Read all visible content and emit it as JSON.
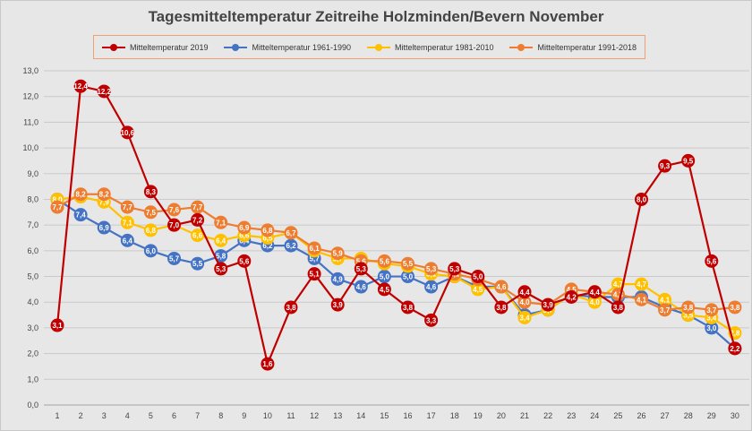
{
  "chart_data": {
    "type": "line",
    "title": "Tagesmitteltemperatur Zeitreihe Holzminden/Bevern November",
    "xlabel": "",
    "ylabel": "",
    "categories": [
      "1",
      "2",
      "3",
      "4",
      "5",
      "6",
      "7",
      "8",
      "9",
      "10",
      "11",
      "12",
      "13",
      "14",
      "15",
      "16",
      "17",
      "18",
      "19",
      "20",
      "21",
      "22",
      "23",
      "24",
      "25",
      "26",
      "27",
      "28",
      "29",
      "30"
    ],
    "ylim": [
      0,
      13
    ],
    "ytick_labels": [
      "0,0",
      "1,0",
      "2,0",
      "3,0",
      "4,0",
      "5,0",
      "6,0",
      "7,0",
      "8,0",
      "9,0",
      "10,0",
      "11,0",
      "12,0",
      "13,0"
    ],
    "grid": true,
    "legend_position": "top",
    "series": [
      {
        "name": "Mitteltemperatur 1961-1990",
        "color": "#4472c4",
        "values": [
          8.0,
          7.4,
          6.9,
          6.4,
          6.0,
          5.7,
          5.5,
          5.8,
          6.4,
          6.2,
          6.2,
          5.7,
          4.9,
          4.6,
          5.0,
          5.0,
          4.6,
          5.0,
          4.6,
          4.6,
          3.5,
          3.7,
          4.3,
          4.2,
          4.2,
          4.2,
          3.8,
          3.5,
          3.0,
          2.2
        ],
        "labels": [
          "8,0",
          "7,4",
          "6,9",
          "6,4",
          "6,0",
          "5,7",
          "5,5",
          "5,8",
          "6,4",
          "6,2",
          "6,2",
          "5,7",
          "4,9",
          "4,6",
          "5,0",
          "5,0",
          "4,6",
          "5,0",
          "4,6",
          "4,6",
          "3,5",
          "3,7",
          "4,3",
          "4,2",
          "4,2",
          "4,2",
          "3,8",
          "3,5",
          "3,0",
          "2,2"
        ]
      },
      {
        "name": "Mitteltemperatur 1981-2010",
        "color": "#ffc000",
        "values": [
          8.0,
          8.1,
          7.9,
          7.1,
          6.8,
          7.0,
          6.6,
          6.4,
          6.6,
          6.5,
          6.7,
          6.0,
          5.7,
          5.7,
          5.5,
          5.4,
          5.1,
          5.0,
          4.5,
          4.6,
          3.4,
          3.7,
          4.3,
          4.0,
          4.7,
          4.7,
          4.1,
          3.5,
          3.4,
          2.8
        ],
        "labels": [
          "8,0",
          "8,1",
          "7,9",
          "7,1",
          "6,8",
          "7,0",
          "6,6",
          "6,4",
          "6,6",
          "6,5",
          "6,7",
          "6,0",
          "5,7",
          "5,7",
          "5,5",
          "5,4",
          "5,1",
          "5,0",
          "4,5",
          "4,6",
          "3,4",
          "3,7",
          "4,3",
          "4,0",
          "4,7",
          "4,7",
          "4,1",
          "3,5",
          "3,4",
          "2,8"
        ]
      },
      {
        "name": "Mitteltemperatur 1991-2018",
        "color": "#ed7d31",
        "values": [
          7.7,
          8.2,
          8.2,
          7.7,
          7.5,
          7.6,
          7.7,
          7.1,
          6.9,
          6.8,
          6.7,
          6.1,
          5.9,
          5.6,
          5.6,
          5.5,
          5.3,
          5.1,
          4.9,
          4.6,
          4.0,
          3.9,
          4.5,
          4.4,
          4.3,
          4.1,
          3.7,
          3.8,
          3.7,
          3.8
        ],
        "labels": [
          "7,7",
          "8,2",
          "8,2",
          "7,7",
          "7,5",
          "7,6",
          "7,7",
          "7,1",
          "6,9",
          "6,8",
          "6,7",
          "6,1",
          "5,9",
          "5,6",
          "5,6",
          "5,5",
          "5,3",
          "5,1",
          "4,9",
          "4,6",
          "4,0",
          "3,9",
          "4,5",
          "4,4",
          "4,3",
          "4,1",
          "3,7",
          "3,8",
          "3,7",
          "3,8"
        ]
      },
      {
        "name": "Mitteltemperatur 2019",
        "color": "#c00000",
        "values": [
          3.1,
          12.4,
          12.2,
          10.6,
          8.3,
          7.0,
          7.2,
          5.3,
          5.6,
          1.6,
          3.8,
          5.1,
          3.9,
          5.3,
          4.5,
          3.8,
          3.3,
          5.3,
          5.0,
          3.8,
          4.4,
          3.9,
          4.2,
          4.4,
          3.8,
          8.0,
          9.3,
          9.5,
          5.6,
          2.2
        ],
        "labels": [
          "3,1",
          "12,4",
          "12,2",
          "10,6",
          "8,3",
          "7,0",
          "7,2",
          "5,3",
          "5,6",
          "1,6",
          "3,8",
          "5,1",
          "3,9",
          "5,3",
          "4,5",
          "3,8",
          "3,3",
          "5,3",
          "5,0",
          "3,8",
          "4,4",
          "3,9",
          "4,2",
          "4,4",
          "3,8",
          "8,0",
          "9,3",
          "9,5",
          "5,6",
          "2,2"
        ]
      }
    ],
    "legend_order": [
      3,
      0,
      1,
      2
    ]
  }
}
